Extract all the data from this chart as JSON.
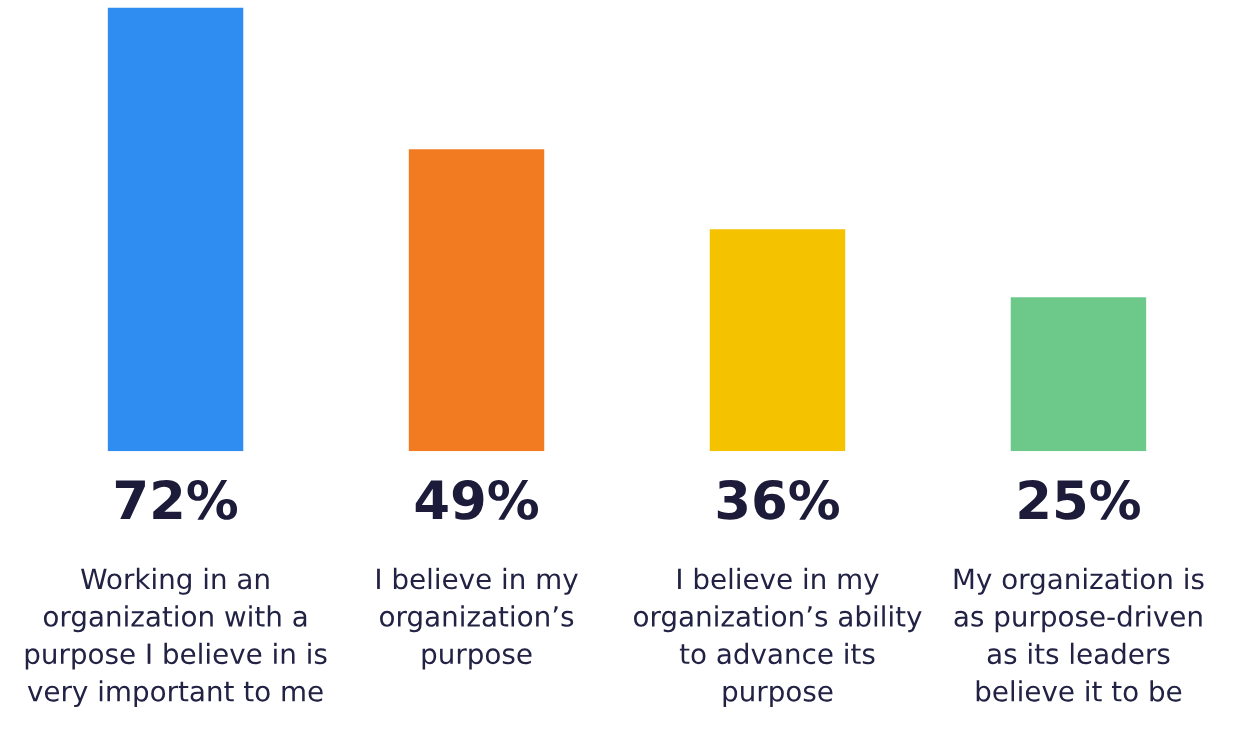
{
  "chart_data": {
    "type": "bar",
    "categories": [
      "Working in an\norganization with a\npurpose I believe in is\nvery important to me",
      "I believe in my\norganization’s\npurpose",
      "I believe in my\norganization’s ability\nto advance its\npurpose",
      "My organization is\nas purpose-driven\nas its leaders\nbelieve it to be"
    ],
    "values": [
      72,
      49,
      36,
      25
    ],
    "value_labels": [
      "72%",
      "49%",
      "36%",
      "25%"
    ],
    "colors": [
      "#2f8cf0",
      "#f27b22",
      "#f5c200",
      "#6cc98a"
    ]
  }
}
